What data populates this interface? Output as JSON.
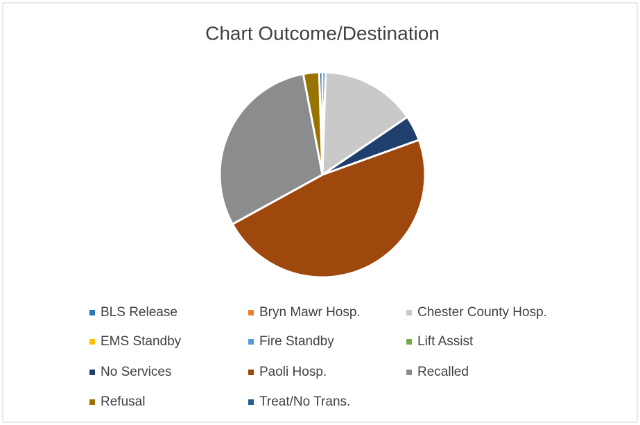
{
  "chart_data": {
    "type": "pie",
    "title": "Chart Outcome/Destination",
    "categories": [
      "BLS Release",
      "Bryn Mawr Hosp.",
      "Chester County Hosp.",
      "EMS Standby",
      "Fire Standby",
      "Lift Assist",
      "No Services",
      "Paoli Hosp.",
      "Recalled",
      "Refusal",
      "Treat/No Trans."
    ],
    "values": [
      0.5,
      0,
      15,
      0,
      0,
      0,
      4,
      47.5,
      30,
      2.5,
      0.5
    ],
    "colors": [
      "#2e75b6",
      "#ed7d31",
      "#c9c9c9",
      "#ffc000",
      "#5b9bd5",
      "#70ad47",
      "#1f3f6e",
      "#9e480e",
      "#8a8c8e",
      "#997300",
      "#255e91"
    ],
    "legend": "bottom"
  }
}
